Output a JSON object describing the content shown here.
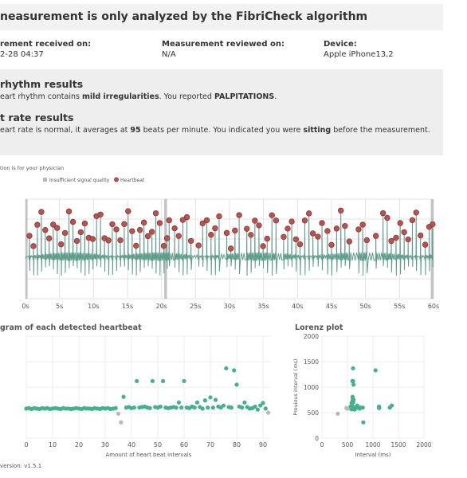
{
  "banner": {
    "title": "neasurement is only analyzed by the FibriCheck algorithm"
  },
  "info": [
    {
      "label": "rement received on:",
      "value": "2-28 04:37"
    },
    {
      "label": "Measurement reviewed on:",
      "value": "N/A"
    },
    {
      "label": "Device:",
      "value": "Apple iPhone13,2"
    }
  ],
  "results": [
    {
      "title": "rhythm results",
      "parts": [
        "eart rhythm contains ",
        "mild irregularities",
        ". You reported ",
        "PALPITATIONS",
        "."
      ]
    },
    {
      "title": "t rate results",
      "parts": [
        "eart rate is normal, it averages at ",
        "95",
        " beats per minute. You indicated you were ",
        "sitting",
        " before the measurement."
      ]
    }
  ],
  "ecg": {
    "note": "tion is for your physician",
    "legend": [
      "Insufficient signal quality",
      "Heartbeat"
    ],
    "xlim": [
      0,
      60
    ],
    "xticks": [
      {
        "value": 0,
        "label": "0s"
      },
      {
        "value": 5,
        "label": "5s"
      },
      {
        "value": 10,
        "label": "10s"
      },
      {
        "value": 15,
        "label": "15s"
      },
      {
        "value": 20,
        "label": "20s"
      },
      {
        "value": 25,
        "label": "25s"
      },
      {
        "value": 30,
        "label": "30s"
      },
      {
        "value": 35,
        "label": "35s"
      },
      {
        "value": 40,
        "label": "40s"
      },
      {
        "value": 45,
        "label": "45s"
      },
      {
        "value": 50,
        "label": "50s"
      },
      {
        "value": 55,
        "label": "55s"
      },
      {
        "value": 60,
        "label": "60s"
      }
    ],
    "insufficient_regions": [
      [
        0,
        0.3
      ],
      [
        20.4,
        20.8
      ],
      [
        59.6,
        60
      ]
    ]
  },
  "tachogram": {
    "title": "gram of each detected heartbeat",
    "xlabel": "Amount of heart beat intervals",
    "xlim": [
      0,
      93
    ],
    "xticks": [
      0,
      10,
      20,
      30,
      40,
      50,
      60,
      70,
      80,
      90
    ],
    "ylim": [
      0,
      2000
    ],
    "color": "#45b08c",
    "insufficient_color": "#b8b8b8",
    "insufficient": [
      35,
      36,
      92
    ],
    "values": [
      580,
      590,
      570,
      590,
      580,
      570,
      590,
      580,
      590,
      570,
      580,
      590,
      580,
      570,
      590,
      580,
      580,
      570,
      580,
      590,
      580,
      570,
      590,
      580,
      580,
      570,
      590,
      580,
      570,
      590,
      580,
      590,
      570,
      580,
      590,
      480,
      310,
      810,
      600,
      610,
      590,
      600,
      1120,
      600,
      610,
      620,
      600,
      590,
      1120,
      610,
      600,
      620,
      1120,
      600,
      590,
      600,
      610,
      600,
      700,
      600,
      1120,
      600,
      590,
      620,
      600,
      700,
      610,
      580,
      740,
      600,
      800,
      600,
      750,
      620,
      600,
      640,
      1370,
      610,
      600,
      1330,
      1050,
      620,
      600,
      700,
      610,
      580,
      590,
      620,
      560,
      640,
      690,
      580,
      500
    ]
  },
  "lorenz": {
    "title": "Lorenz plot",
    "xlabel": "Interval (ms)",
    "ylabel": "Previous interval (ms)",
    "xlim": [
      0,
      2000
    ],
    "ylim": [
      0,
      2000
    ],
    "xticks": [
      0,
      500,
      1000,
      1500,
      2000
    ],
    "yticks": [
      0,
      500,
      1000,
      1500,
      2000
    ]
  },
  "footer": {
    "version": "version: v1.5.1"
  }
}
